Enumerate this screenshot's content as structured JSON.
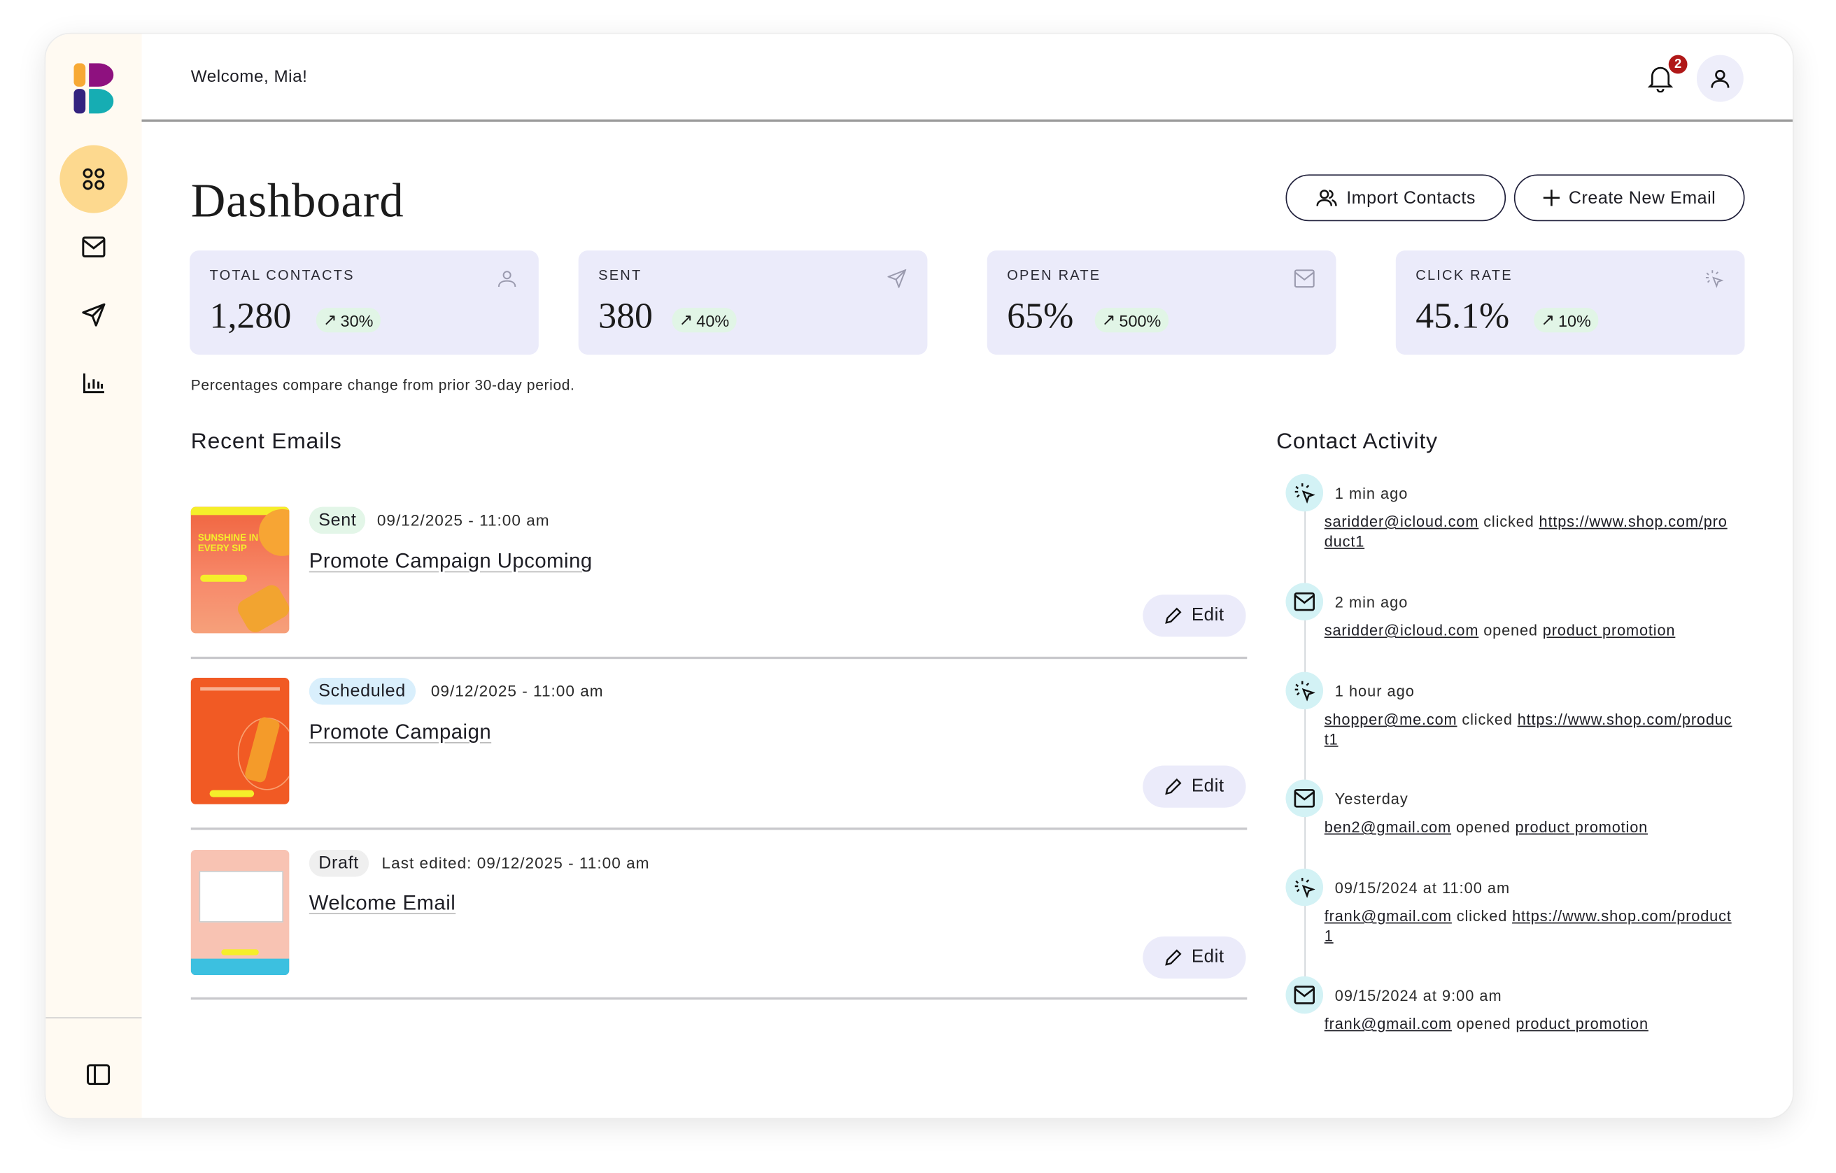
{
  "header": {
    "welcome": "Welcome, Mia!",
    "notification_count": "2"
  },
  "sidebar": {
    "items": [
      {
        "name": "dashboard",
        "icon": "grid-icon",
        "active": true
      },
      {
        "name": "emails",
        "icon": "mail-icon"
      },
      {
        "name": "send",
        "icon": "send-icon"
      },
      {
        "name": "analytics",
        "icon": "bar-chart-icon"
      }
    ],
    "footer_icon": "panel-toggle-icon"
  },
  "page": {
    "title": "Dashboard"
  },
  "actions": {
    "import_contacts": "Import Contacts",
    "create_new_email": "Create New Email"
  },
  "stats": [
    {
      "label": "TOTAL CONTACTS",
      "value": "1,280",
      "change": "30%",
      "icon": "users-icon"
    },
    {
      "label": "SENT",
      "value": "380",
      "change": "40%",
      "icon": "send-icon"
    },
    {
      "label": "OPEN RATE",
      "value": "65%",
      "change": "500%",
      "icon": "mail-icon"
    },
    {
      "label": "CLICK RATE",
      "value": "45.1%",
      "change": "10%",
      "icon": "click-icon"
    }
  ],
  "stats_note": "Percentages compare change from prior 30-day period.",
  "recent_emails": {
    "heading": "Recent Emails",
    "edit_label": "Edit",
    "items": [
      {
        "status": "Sent",
        "date": "09/12/2025 - 11:00 am",
        "title": "Promote Campaign Upcoming",
        "thumb_text": "SUNSHINE IN EVERY SIP"
      },
      {
        "status": "Scheduled",
        "date": "09/12/2025 - 11:00 am",
        "title": "Promote Campaign"
      },
      {
        "status": "Draft",
        "date": "Last edited: 09/12/2025 - 11:00 am",
        "title": "Welcome Email"
      }
    ]
  },
  "contact_activity": {
    "heading": "Contact Activity",
    "items": [
      {
        "type": "click",
        "time": "1 min ago",
        "contact": "saridder@icloud.com",
        "action": "clicked",
        "target": "https://www.shop.com/product1"
      },
      {
        "type": "open",
        "time": "2 min ago",
        "contact": "saridder@icloud.com",
        "action": "opened",
        "target": "product promotion"
      },
      {
        "type": "click",
        "time": "1 hour ago",
        "contact": "shopper@me.com",
        "action": "clicked",
        "target": "https://www.shop.com/product1"
      },
      {
        "type": "open",
        "time": "Yesterday",
        "contact": "ben2@gmail.com",
        "action": "opened",
        "target": "product promotion"
      },
      {
        "type": "click",
        "time": "09/15/2024 at 11:00 am",
        "contact": "frank@gmail.com",
        "action": "clicked",
        "target": "https://www.shop.com/product1"
      },
      {
        "type": "open",
        "time": "09/15/2024 at 9:00 am",
        "contact": "frank@gmail.com",
        "action": "opened",
        "target": "product promotion"
      }
    ]
  },
  "colors": {
    "sidebar_bg": "#fffaf2",
    "active_nav": "#fdd98f",
    "card_bg": "#ebebfa",
    "change_bg": "#e1f5e6",
    "sent_badge": "#e3f6e8",
    "scheduled_badge": "#d9effc",
    "draft_badge": "#efefef",
    "activity_icon_bg": "#d3f2f5",
    "notification_badge": "#b01818"
  }
}
